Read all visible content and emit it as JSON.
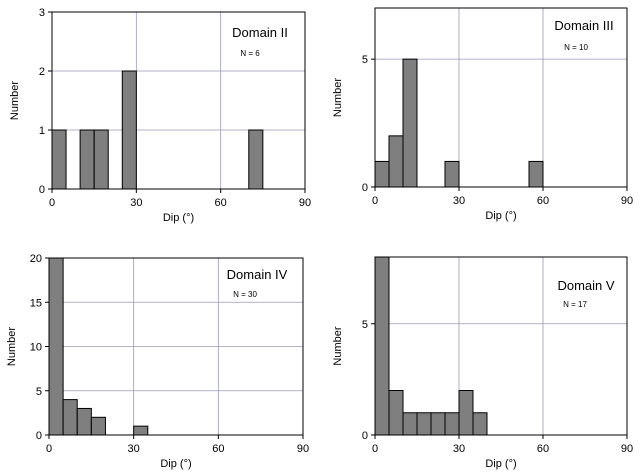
{
  "colors": {
    "bar": "#7f7f7f",
    "grid": "#9a9aba",
    "axis": "#000000"
  },
  "chart_data": [
    {
      "type": "bar",
      "title": "Domain II",
      "annotation": "N = 6",
      "xlabel": "Dip (°)",
      "ylabel": "Number",
      "xlim": [
        0,
        90
      ],
      "ylim": [
        0,
        3
      ],
      "xticks": [
        0,
        30,
        60,
        90
      ],
      "yticks": [
        0,
        1,
        2,
        3
      ],
      "grid": true,
      "bin_width": 5,
      "bins": [
        {
          "x0": 0,
          "value": 1
        },
        {
          "x0": 10,
          "value": 1
        },
        {
          "x0": 15,
          "value": 1
        },
        {
          "x0": 25,
          "value": 2
        },
        {
          "x0": 70,
          "value": 1
        }
      ]
    },
    {
      "type": "bar",
      "title": "Domain III",
      "annotation": "N = 10",
      "xlabel": "Dip (°)",
      "ylabel": "Number",
      "xlim": [
        0,
        90
      ],
      "ylim": [
        0,
        7
      ],
      "xticks": [
        0,
        30,
        60,
        90
      ],
      "yticks": [
        0,
        5
      ],
      "grid": true,
      "bin_width": 5,
      "bins": [
        {
          "x0": 0,
          "value": 1
        },
        {
          "x0": 5,
          "value": 2
        },
        {
          "x0": 10,
          "value": 5
        },
        {
          "x0": 25,
          "value": 1
        },
        {
          "x0": 55,
          "value": 1
        }
      ]
    },
    {
      "type": "bar",
      "title": "Domain IV",
      "annotation": "N = 30",
      "xlabel": "Dip (°)",
      "ylabel": "Number",
      "xlim": [
        0,
        90
      ],
      "ylim": [
        0,
        20
      ],
      "xticks": [
        0,
        30,
        60,
        90
      ],
      "yticks": [
        0,
        5,
        10,
        15,
        20
      ],
      "grid": true,
      "bin_width": 5,
      "bins": [
        {
          "x0": 0,
          "value": 20
        },
        {
          "x0": 5,
          "value": 4
        },
        {
          "x0": 10,
          "value": 3
        },
        {
          "x0": 15,
          "value": 2
        },
        {
          "x0": 30,
          "value": 1
        }
      ]
    },
    {
      "type": "bar",
      "title": "Domain V",
      "annotation": "N = 17",
      "xlabel": "Dip (°)",
      "ylabel": "Number",
      "xlim": [
        0,
        90
      ],
      "ylim": [
        0,
        8
      ],
      "xticks": [
        0,
        30,
        60,
        90
      ],
      "yticks": [
        0,
        5
      ],
      "grid": true,
      "bin_width": 5,
      "bins": [
        {
          "x0": 0,
          "value": 8
        },
        {
          "x0": 5,
          "value": 2
        },
        {
          "x0": 10,
          "value": 1
        },
        {
          "x0": 15,
          "value": 1
        },
        {
          "x0": 20,
          "value": 1
        },
        {
          "x0": 25,
          "value": 1
        },
        {
          "x0": 30,
          "value": 2
        },
        {
          "x0": 35,
          "value": 1
        }
      ]
    }
  ]
}
